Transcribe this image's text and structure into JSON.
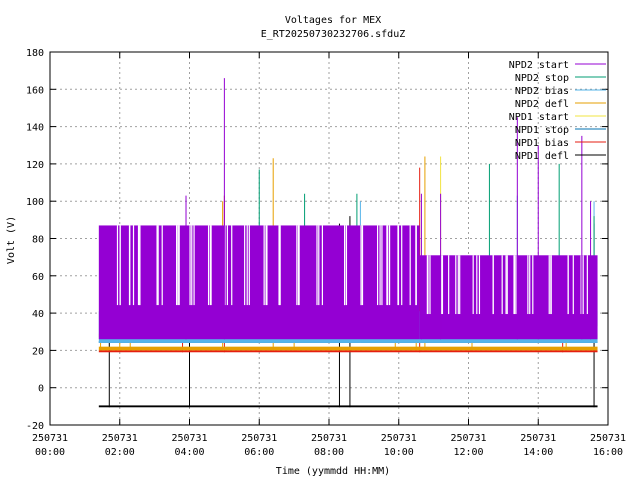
{
  "chart_data": {
    "type": "line",
    "title": "Voltages for MEX",
    "subtitle": "E_RT20250730232706.sfduZ",
    "xlabel": "Time (yymmdd HH:MM)",
    "ylabel": "Volt (V)",
    "xlim": [
      0,
      16
    ],
    "ylim": [
      -20,
      180
    ],
    "grid": true,
    "legend_position": "top-right",
    "x_ticks": [
      {
        "v": 0,
        "date": "250731",
        "time": "00:00"
      },
      {
        "v": 2,
        "date": "250731",
        "time": "02:00"
      },
      {
        "v": 4,
        "date": "250731",
        "time": "04:00"
      },
      {
        "v": 6,
        "date": "250731",
        "time": "06:00"
      },
      {
        "v": 8,
        "date": "250731",
        "time": "08:00"
      },
      {
        "v": 10,
        "date": "250731",
        "time": "10:00"
      },
      {
        "v": 12,
        "date": "250731",
        "time": "12:00"
      },
      {
        "v": 14,
        "date": "250731",
        "time": "14:00"
      },
      {
        "v": 16,
        "date": "250731",
        "time": "16:00"
      }
    ],
    "y_ticks": [
      -20,
      0,
      20,
      40,
      60,
      80,
      100,
      120,
      140,
      160,
      180
    ],
    "series": [
      {
        "name": "NPD2 start",
        "color": "#9400d3",
        "bands": [
          {
            "x0": 1.4,
            "x1": 10.6,
            "lo": 26,
            "hi": 87
          },
          {
            "x0": 10.6,
            "x1": 15.7,
            "lo": 26,
            "hi": 71
          }
        ],
        "gaps": [
          1.9,
          2.3,
          2.6,
          3.1,
          3.6,
          4.1,
          4.6,
          5.1,
          5.6,
          6.2,
          6.6,
          7.1,
          7.7,
          8.4,
          8.9,
          9.4,
          9.7,
          10.0,
          10.4,
          10.9,
          11.3,
          11.7,
          12.2,
          12.6,
          13.0,
          13.4,
          13.8,
          14.3,
          14.9,
          15.3
        ],
        "spikes": [
          [
            3.9,
            103
          ],
          [
            5.0,
            166
          ],
          [
            10.65,
            104
          ],
          [
            11.2,
            104
          ],
          [
            13.4,
            145
          ],
          [
            14.0,
            130
          ],
          [
            15.25,
            135
          ],
          [
            15.5,
            100
          ]
        ]
      },
      {
        "name": "NPD2 stop",
        "color": "#009e73",
        "bands": [
          {
            "x0": 11.0,
            "x1": 15.7,
            "lo": 33,
            "hi": 57
          }
        ],
        "spikes": [
          [
            6.0,
            117
          ],
          [
            7.3,
            104
          ],
          [
            8.8,
            104
          ],
          [
            12.6,
            120
          ],
          [
            14.6,
            120
          ],
          [
            15.6,
            92
          ]
        ]
      },
      {
        "name": "NPD2 bias",
        "color": "#56b4e9",
        "bands": [
          {
            "x0": 1.4,
            "x1": 15.7,
            "lo": 24,
            "hi": 41
          }
        ],
        "gaps": [
          2.1,
          3.3,
          5.9,
          7.9,
          9.2,
          10.2,
          11.6,
          12.9,
          14.1
        ],
        "spikes": [
          [
            8.9,
            100
          ],
          [
            13.4,
            103
          ],
          [
            15.6,
            100
          ]
        ]
      },
      {
        "name": "NPD2 defl",
        "color": "#e69f00",
        "bands": [
          {
            "x0": 1.4,
            "x1": 15.7,
            "lo": 20,
            "hi": 22
          }
        ],
        "spikes": [
          [
            1.45,
            41
          ],
          [
            2.0,
            40
          ],
          [
            2.3,
            41
          ],
          [
            4.95,
            100
          ],
          [
            6.4,
            123
          ],
          [
            7.0,
            40
          ],
          [
            9.9,
            40
          ],
          [
            10.5,
            40
          ],
          [
            10.75,
            124
          ],
          [
            12.1,
            28
          ],
          [
            14.8,
            40
          ]
        ]
      },
      {
        "name": "NPD1 start",
        "color": "#f0e442",
        "bands": [
          {
            "x0": 1.4,
            "x1": 15.7,
            "lo": 27,
            "hi": 29
          }
        ],
        "spikes": [
          [
            1.55,
            40
          ],
          [
            3.2,
            40
          ],
          [
            6.5,
            40
          ],
          [
            10.2,
            40
          ],
          [
            11.2,
            124
          ],
          [
            14.2,
            40
          ]
        ]
      },
      {
        "name": "NPD1 stop",
        "color": "#0072b2",
        "bands": [
          {
            "x0": 1.4,
            "x1": 15.7,
            "lo": 24,
            "hi": 25
          }
        ],
        "spikes": [
          [
            11.3,
            60
          ],
          [
            12.6,
            60
          ],
          [
            14.0,
            60
          ],
          [
            15.65,
            60
          ]
        ]
      },
      {
        "name": "NPD1 bias",
        "color": "#e51e10",
        "bands": [
          {
            "x0": 1.4,
            "x1": 15.7,
            "lo": 19,
            "hi": 20
          }
        ],
        "spikes": [
          [
            3.8,
            66
          ],
          [
            5.0,
            103
          ],
          [
            10.6,
            118
          ],
          [
            14.7,
            60
          ]
        ]
      },
      {
        "name": "NPD1 defl",
        "color": "#000000",
        "bands": [
          {
            "x0": 1.4,
            "x1": 15.7,
            "lo": -10.5,
            "hi": -9.5
          }
        ],
        "spikes": [
          [
            1.7,
            52
          ],
          [
            4.0,
            53
          ],
          [
            8.3,
            88
          ],
          [
            8.6,
            92
          ],
          [
            15.6,
            88
          ]
        ]
      }
    ]
  }
}
